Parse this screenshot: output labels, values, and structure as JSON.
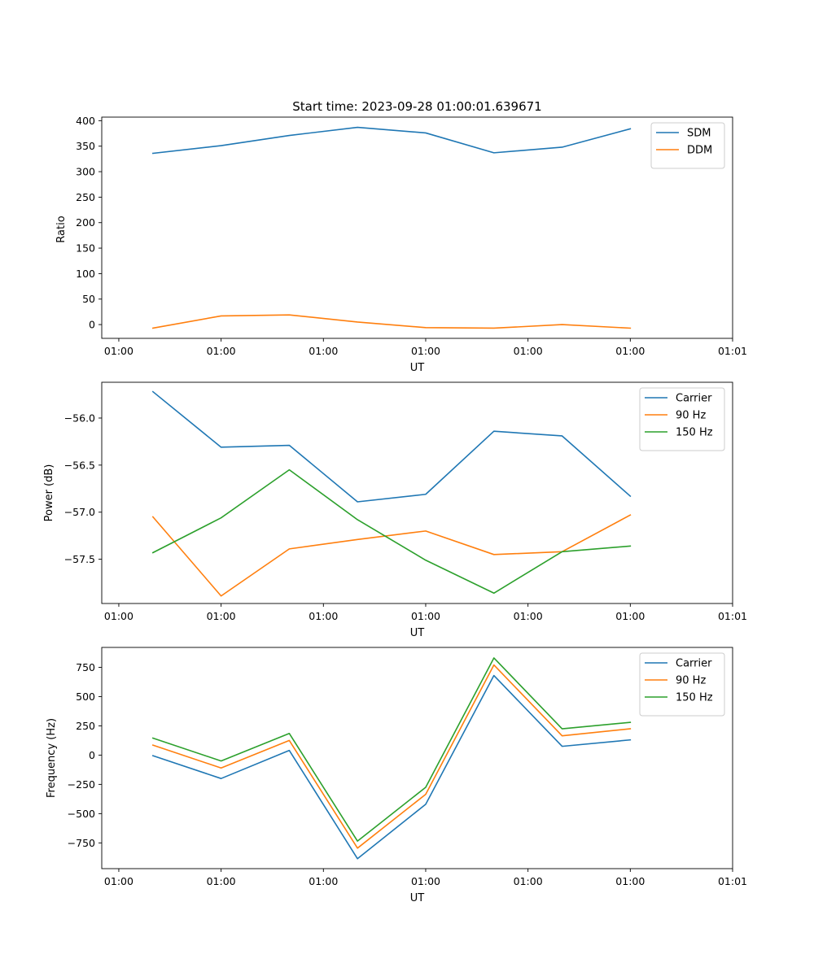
{
  "figure_title": "Start time: 2023-09-28 01:00:01.639671",
  "chart_data": [
    {
      "type": "line",
      "title": "Start time: 2023-09-28 01:00:01.639671",
      "xlabel": "UT",
      "ylabel": "Ratio",
      "x": [
        0,
        1,
        2,
        3,
        4,
        5,
        6,
        7
      ],
      "xlim": [
        -0.75,
        8.5
      ],
      "x_ticks": [
        -0.5,
        1,
        2.5,
        4,
        5.5,
        7,
        8.5
      ],
      "x_tick_labels": [
        "01:00",
        "01:00",
        "01:00",
        "01:00",
        "01:00",
        "01:00",
        "01:01"
      ],
      "ylim": [
        -27,
        407
      ],
      "y_ticks": [
        0,
        50,
        100,
        150,
        200,
        250,
        300,
        350,
        400
      ],
      "y_tick_labels": [
        "0",
        "50",
        "100",
        "150",
        "200",
        "250",
        "300",
        "350",
        "400"
      ],
      "legend_position": "top-right",
      "series": [
        {
          "name": "SDM",
          "color": "#1f77b4",
          "values": [
            336,
            351,
            371,
            387,
            376,
            337,
            348,
            384
          ]
        },
        {
          "name": "DDM",
          "color": "#ff7f0e",
          "values": [
            -7,
            17,
            19,
            5,
            -6,
            -7,
            0,
            -7
          ]
        }
      ]
    },
    {
      "type": "line",
      "title": "",
      "xlabel": "UT",
      "ylabel": "Power (dB)",
      "x": [
        0,
        1,
        2,
        3,
        4,
        5,
        6,
        7
      ],
      "xlim": [
        -0.75,
        8.5
      ],
      "x_ticks": [
        -0.5,
        1,
        2.5,
        4,
        5.5,
        7,
        8.5
      ],
      "x_tick_labels": [
        "01:00",
        "01:00",
        "01:00",
        "01:00",
        "01:00",
        "01:00",
        "01:01"
      ],
      "ylim": [
        -57.97,
        -55.62
      ],
      "y_ticks": [
        -57.5,
        -57.0,
        -56.5,
        -56.0
      ],
      "y_tick_labels": [
        "−57.5",
        "−57.0",
        "−56.5",
        "−56.0"
      ],
      "legend_position": "top-right",
      "series": [
        {
          "name": "Carrier",
          "color": "#1f77b4",
          "values": [
            -55.72,
            -56.31,
            -56.29,
            -56.89,
            -56.81,
            -56.14,
            -56.19,
            -56.83
          ]
        },
        {
          "name": "90 Hz",
          "color": "#ff7f0e",
          "values": [
            -57.05,
            -57.89,
            -57.39,
            -57.29,
            -57.2,
            -57.45,
            -57.42,
            -57.03
          ]
        },
        {
          "name": "150 Hz",
          "color": "#2ca02c",
          "values": [
            -57.43,
            -57.06,
            -56.55,
            -57.08,
            -57.51,
            -57.86,
            -57.42,
            -57.36
          ]
        }
      ]
    },
    {
      "type": "line",
      "title": "",
      "xlabel": "UT",
      "ylabel": "Frequency (Hz)",
      "x": [
        0,
        1,
        2,
        3,
        4,
        5,
        6,
        7
      ],
      "xlim": [
        -0.75,
        8.5
      ],
      "x_ticks": [
        -0.5,
        1,
        2.5,
        4,
        5.5,
        7,
        8.5
      ],
      "x_tick_labels": [
        "01:00",
        "01:00",
        "01:00",
        "01:00",
        "01:00",
        "01:00",
        "01:01"
      ],
      "ylim": [
        -970,
        920
      ],
      "y_ticks": [
        -750,
        -500,
        -250,
        0,
        250,
        500,
        750
      ],
      "y_tick_labels": [
        "−750",
        "−500",
        "−250",
        "0",
        "250",
        "500",
        "750"
      ],
      "legend_position": "top-right",
      "series": [
        {
          "name": "Carrier",
          "color": "#1f77b4",
          "values": [
            -5,
            -200,
            40,
            -885,
            -420,
            680,
            75,
            130
          ]
        },
        {
          "name": "90 Hz",
          "color": "#ff7f0e",
          "values": [
            85,
            -110,
            125,
            -795,
            -335,
            770,
            165,
            225
          ]
        },
        {
          "name": "150 Hz",
          "color": "#2ca02c",
          "values": [
            145,
            -50,
            185,
            -735,
            -275,
            830,
            225,
            280
          ]
        }
      ]
    }
  ]
}
